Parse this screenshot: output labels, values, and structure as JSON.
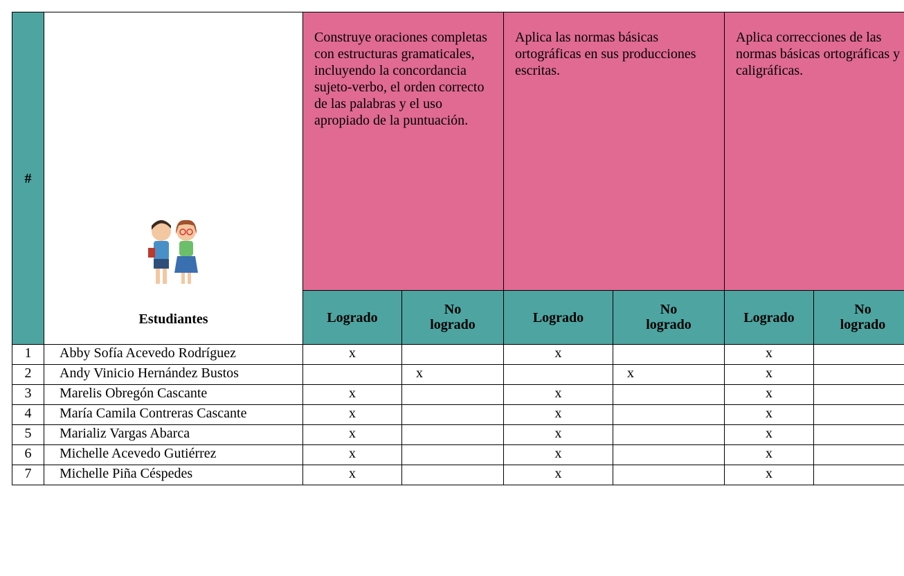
{
  "table": {
    "header": {
      "number": "#",
      "students": "Estudiantes",
      "criteria": [
        "Construye oraciones completas con estructuras gramaticales, incluyendo la concordancia sujeto-verbo, el orden correcto de las palabras y el uso apropiado de la puntuación.",
        "Aplica las normas básicas ortográficas en sus producciones escritas.",
        "Aplica correcciones de las normas básicas ortográficas y caligráficas."
      ],
      "sub": [
        "Logrado",
        "No logrado",
        "Logrado",
        "No logrado",
        "Logrado",
        "No logrado"
      ]
    },
    "rows": [
      {
        "number": "1",
        "name": "Abby Sofía Acevedo Rodríguez",
        "marks": [
          "x",
          null,
          "x",
          null,
          "x",
          null
        ]
      },
      {
        "number": "2",
        "name": "Andy Vinicio Hernández Bustos",
        "marks": [
          null,
          "x",
          null,
          "x",
          "x",
          null
        ]
      },
      {
        "number": "3",
        "name": "Marelis Obregón Cascante",
        "marks": [
          "x",
          null,
          "x",
          null,
          "x",
          null
        ]
      },
      {
        "number": "4",
        "name": "María Camila Contreras Cascante",
        "marks": [
          "x",
          null,
          "x",
          null,
          "x",
          null
        ]
      },
      {
        "number": "5",
        "name": "Marializ Vargas Abarca",
        "marks": [
          "x",
          null,
          "x",
          null,
          "x",
          null
        ]
      },
      {
        "number": "6",
        "name": "Michelle Acevedo Gutiérrez",
        "marks": [
          "x",
          null,
          "x",
          null,
          "x",
          null
        ]
      },
      {
        "number": "7",
        "name": "Michelle Piña Céspedes",
        "marks": [
          "x",
          null,
          "x",
          null,
          "x",
          null
        ]
      }
    ]
  }
}
